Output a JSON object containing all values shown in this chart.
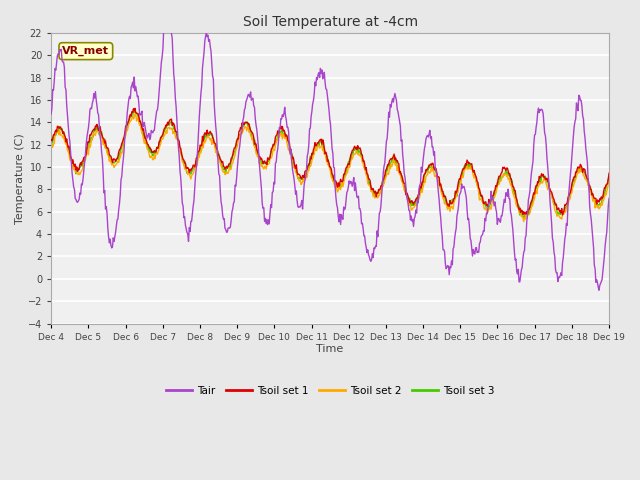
{
  "title": "Soil Temperature at -4cm",
  "xlabel": "Time",
  "ylabel": "Temperature (C)",
  "ylim": [
    -4,
    22
  ],
  "yticks": [
    -4,
    -2,
    0,
    2,
    4,
    6,
    8,
    10,
    12,
    14,
    16,
    18,
    20,
    22
  ],
  "xtick_labels": [
    "Dec 4",
    "Dec 5",
    "Dec 6",
    "Dec 7",
    "Dec 8",
    "Dec 9",
    "Dec 10",
    "Dec 11",
    "Dec 12",
    "Dec 13",
    "Dec 14",
    "Dec 15",
    "Dec 16",
    "Dec 17",
    "Dec 18",
    "Dec 19"
  ],
  "plot_bg": "#f0f0f0",
  "fig_bg": "#e8e8e8",
  "grid_color": "#ffffff",
  "colors": {
    "Tair": "#aa44cc",
    "Tsoil set 1": "#dd0000",
    "Tsoil set 2": "#ffaa00",
    "Tsoil set 3": "#44cc00"
  },
  "legend_label": "VR_met",
  "annotation_bg": "#ffffcc",
  "annotation_border": "#888800",
  "annotation_text_color": "#880000"
}
